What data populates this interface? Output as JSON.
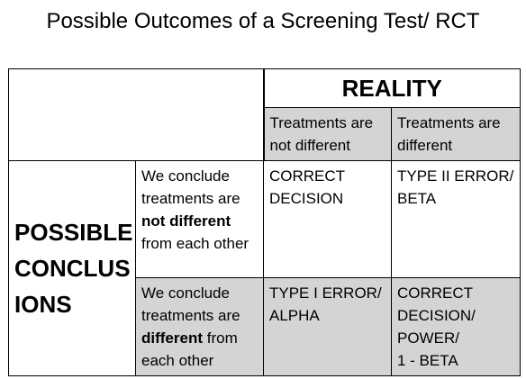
{
  "title": "Possible Outcomes of a Screening Test/ RCT",
  "reality_header": "REALITY",
  "columns": [
    {
      "line1": "Treatments are",
      "line2": "not different"
    },
    {
      "line1": "Treatments are",
      "line2": "different"
    }
  ],
  "possible_conclusions": [
    "POSSIBLE",
    "CONCLUS",
    "IONS"
  ],
  "rows": [
    {
      "conclusion": {
        "pre": "We conclude treatments are",
        "bold": "not different",
        "post": "from each other"
      },
      "cells": [
        [
          "CORRECT",
          "DECISION"
        ],
        [
          "TYPE II ERROR/",
          "BETA"
        ]
      ]
    },
    {
      "conclusion": {
        "pre": "We conclude treatments are",
        "bold": "different",
        "post": "from each other"
      },
      "cells": [
        [
          "TYPE I ERROR/",
          "ALPHA"
        ],
        [
          "CORRECT",
          "DECISION/",
          "POWER/",
          "1 - BETA"
        ]
      ]
    }
  ],
  "colors": {
    "shade": "#d4d4d4",
    "border": "#000000"
  }
}
